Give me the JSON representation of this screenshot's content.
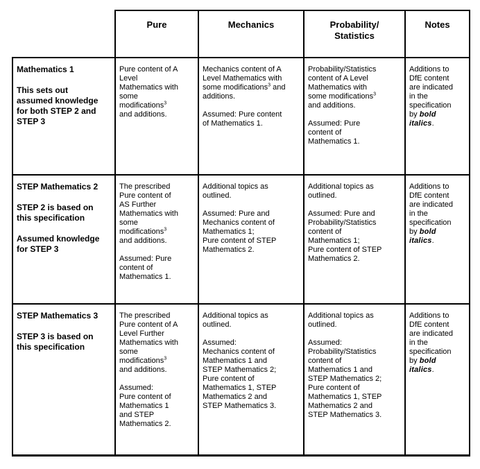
{
  "document": {
    "background_color": "#ffffff",
    "text_color": "#000000",
    "border_color": "#000000"
  },
  "table": {
    "header": {
      "corner": "",
      "columns": [
        "Pure",
        "Mechanics",
        "Probability/\nStatistics",
        "Notes"
      ]
    },
    "rows": [
      {
        "label": "Mathematics 1\n\nThis sets out\nassumed knowledge\nfor both STEP 2 and\nSTEP 3",
        "pure": "Pure content of A\nLevel\nMathematics with\nsome\nmodifications^3^\nand additions.",
        "mechanics": "Mechanics content of A\nLevel Mathematics with\nsome modifications^3^ and\nadditions.\n\nAssumed: Pure content\nof Mathematics 1.",
        "probability_statistics": "Probability/Statistics\ncontent of A Level\nMathematics with\nsome modifications^3^\nand additions.\n\nAssumed: Pure\ncontent of\nMathematics 1.",
        "notes": "Additions to\nDfE content\nare indicated\nin the\nspecification\nby **bold**\n**italics**."
      },
      {
        "label": "STEP Mathematics 2\n\nSTEP 2 is based on\nthis specification\n\nAssumed knowledge\nfor STEP 3",
        "pure": "The prescribed\nPure content of\nAS Further\nMathematics with\nsome\nmodifications^3^\nand additions.\n\nAssumed: Pure\ncontent of\nMathematics 1.",
        "mechanics": "Additional topics as\noutlined.\n\nAssumed: Pure and\nMechanics content of\nMathematics 1;\nPure content of STEP\nMathematics 2.",
        "probability_statistics": "Additional topics as\noutlined.\n\nAssumed: Pure and\nProbability/Statistics\ncontent of\nMathematics 1;\nPure content of STEP\nMathematics 2.",
        "notes": "Additions to\nDfE content\nare indicated\nin the\nspecification\nby **bold**\n**italics**."
      },
      {
        "label": "STEP Mathematics 3\n\nSTEP 3 is based on\nthis specification",
        "pure": "The prescribed\nPure content of A\nLevel Further\nMathematics with\nsome\nmodifications^3^\nand additions.\n\nAssumed:\nPure content of\nMathematics 1\nand STEP\nMathematics 2.",
        "mechanics": "Additional topics as\noutlined.\n\nAssumed:\nMechanics content of\nMathematics 1 and\nSTEP Mathematics 2;\nPure content of\nMathematics 1, STEP\nMathematics 2 and\nSTEP Mathematics 3.",
        "probability_statistics": "Additional topics as\noutlined.\n\nAssumed:\nProbability/Statistics\ncontent of\nMathematics 1 and\nSTEP Mathematics 2;\nPure content of\nMathematics 1, STEP\nMathematics 2 and\nSTEP Mathematics 3.",
        "notes": "Additions to\nDfE content\nare indicated\nin the\nspecification\nby **bold**\n**italics**."
      }
    ]
  }
}
